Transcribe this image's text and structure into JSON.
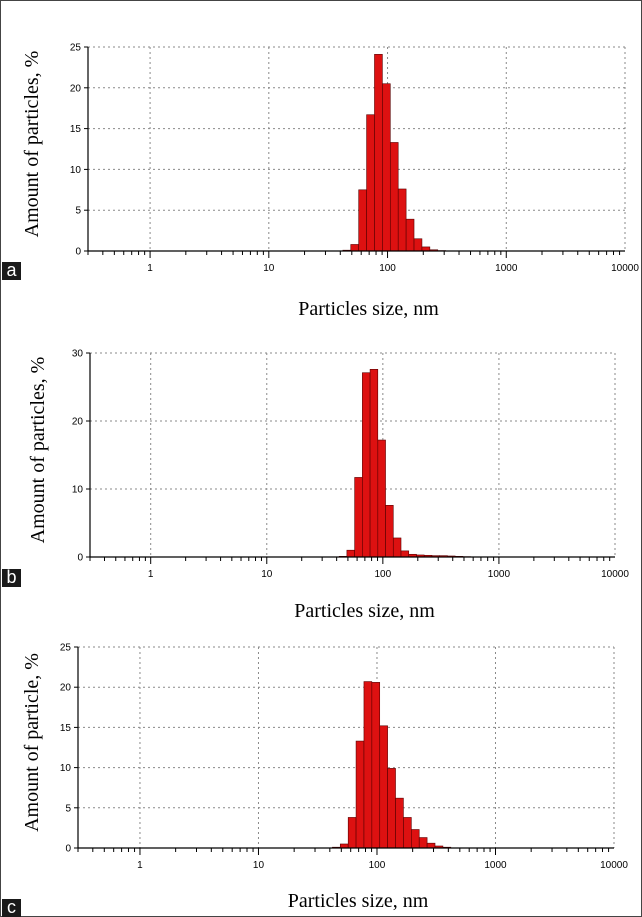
{
  "colors": {
    "bar_fill": "#dd1111",
    "bar_stroke": "#5a0000",
    "grid": "#8a8a8a",
    "axis": "#000000",
    "label_box": "#1a1a1a"
  },
  "chart_data": [
    {
      "type": "bar",
      "panel_label": "a",
      "xlabel": "Particles size, nm",
      "ylabel": "Amount of particles, %",
      "xscale": "log",
      "xlim": [
        0.3,
        10000
      ],
      "ylim": [
        0,
        25
      ],
      "yticks": [
        0,
        5,
        10,
        15,
        20,
        25
      ],
      "xticks": [
        1,
        10,
        100,
        1000,
        10000
      ],
      "xtick_labels": [
        "1",
        "10",
        "100",
        "1000",
        "10000"
      ],
      "grid": true,
      "bins": [
        {
          "x": 45.4,
          "y": 0.1
        },
        {
          "x": 52.9,
          "y": 0.8
        },
        {
          "x": 61.7,
          "y": 7.5
        },
        {
          "x": 71.9,
          "y": 16.7
        },
        {
          "x": 83.8,
          "y": 24.1
        },
        {
          "x": 97.7,
          "y": 20.5
        },
        {
          "x": 113.9,
          "y": 13.3
        },
        {
          "x": 132.8,
          "y": 7.6
        },
        {
          "x": 154.8,
          "y": 3.9
        },
        {
          "x": 180.5,
          "y": 1.5
        },
        {
          "x": 210.4,
          "y": 0.5
        },
        {
          "x": 245.3,
          "y": 0.15
        },
        {
          "x": 286.0,
          "y": 0.05
        }
      ]
    },
    {
      "type": "bar",
      "panel_label": "b",
      "xlabel": "Particles size, nm",
      "ylabel": "Amount of particles, %",
      "xscale": "log",
      "xlim": [
        0.3,
        10000
      ],
      "ylim": [
        0,
        30
      ],
      "yticks": [
        0,
        10,
        20,
        30
      ],
      "xticks": [
        1,
        10,
        100,
        1000,
        10000
      ],
      "xtick_labels": [
        "1",
        "10",
        "100",
        "1000",
        "10000"
      ],
      "grid": true,
      "bins": [
        {
          "x": 45.4,
          "y": 0.1
        },
        {
          "x": 52.9,
          "y": 1.0
        },
        {
          "x": 61.7,
          "y": 11.7
        },
        {
          "x": 71.9,
          "y": 27.1
        },
        {
          "x": 83.8,
          "y": 27.6
        },
        {
          "x": 97.7,
          "y": 17.2
        },
        {
          "x": 113.9,
          "y": 7.6
        },
        {
          "x": 132.8,
          "y": 2.8
        },
        {
          "x": 154.8,
          "y": 0.9
        },
        {
          "x": 180.5,
          "y": 0.4
        },
        {
          "x": 210.4,
          "y": 0.3
        },
        {
          "x": 245.3,
          "y": 0.25
        },
        {
          "x": 286.0,
          "y": 0.2
        },
        {
          "x": 333.5,
          "y": 0.2
        },
        {
          "x": 388.9,
          "y": 0.15
        },
        {
          "x": 453.5,
          "y": 0.1
        },
        {
          "x": 528.8,
          "y": 0.05
        }
      ]
    },
    {
      "type": "bar",
      "panel_label": "c",
      "xlabel": "Particles size, nm",
      "ylabel": "Amount of particle, %",
      "xscale": "log",
      "xlim": [
        0.3,
        10000
      ],
      "ylim": [
        0,
        25
      ],
      "yticks": [
        0,
        5,
        10,
        15,
        20,
        25
      ],
      "xticks": [
        1,
        10,
        100,
        1000,
        10000
      ],
      "xtick_labels": [
        "1",
        "10",
        "100",
        "1000",
        "10000"
      ],
      "grid": true,
      "bins": [
        {
          "x": 45.4,
          "y": 0.1
        },
        {
          "x": 52.9,
          "y": 0.5
        },
        {
          "x": 61.7,
          "y": 3.8
        },
        {
          "x": 71.9,
          "y": 13.3
        },
        {
          "x": 83.8,
          "y": 20.7
        },
        {
          "x": 97.7,
          "y": 20.6
        },
        {
          "x": 113.9,
          "y": 15.2
        },
        {
          "x": 132.8,
          "y": 9.9
        },
        {
          "x": 154.8,
          "y": 6.2
        },
        {
          "x": 180.5,
          "y": 3.8
        },
        {
          "x": 210.4,
          "y": 2.3
        },
        {
          "x": 245.3,
          "y": 1.3
        },
        {
          "x": 286.0,
          "y": 0.6
        },
        {
          "x": 333.5,
          "y": 0.25
        },
        {
          "x": 388.9,
          "y": 0.1
        }
      ]
    }
  ]
}
